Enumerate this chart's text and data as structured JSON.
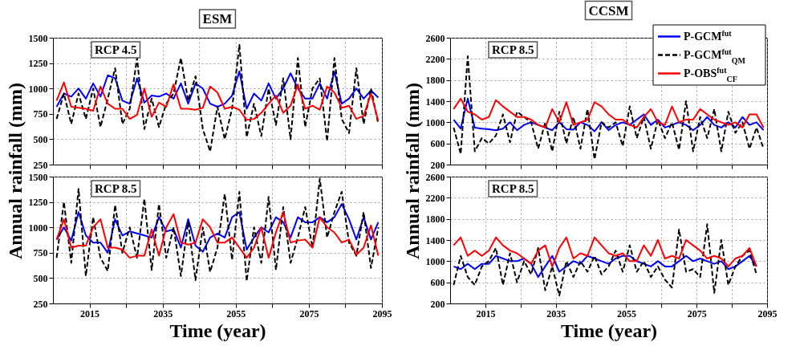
{
  "chart_data": [
    {
      "type": "line",
      "title": "ESM",
      "annotations": [
        "RCP 4.5"
      ],
      "x": [
        2006,
        2008,
        2010,
        2012,
        2014,
        2016,
        2018,
        2020,
        2022,
        2024,
        2026,
        2028,
        2030,
        2032,
        2034,
        2036,
        2038,
        2040,
        2042,
        2044,
        2046,
        2048,
        2050,
        2052,
        2054,
        2056,
        2058,
        2060,
        2062,
        2064,
        2066,
        2068,
        2070,
        2072,
        2074,
        2076,
        2078,
        2080,
        2082,
        2084,
        2086,
        2088,
        2090,
        2092,
        2094
      ],
      "xlim": [
        2005,
        2095
      ],
      "xticks": [
        2015,
        {
          "value": 2025,
          "label": null
        },
        2035,
        {
          "value": 2045,
          "label": null
        },
        2055,
        {
          "value": 2065,
          "label": null
        },
        2075,
        {
          "value": 2085,
          "label": null
        },
        2095
      ],
      "ylim": [
        250,
        1500
      ],
      "yticks": [
        250,
        500,
        750,
        1000,
        1250,
        1500
      ],
      "grid": true,
      "tick_labels": "y",
      "series": [
        {
          "color": "#0000ff",
          "values": [
            820,
            950,
            920,
            1000,
            900,
            1050,
            920,
            1130,
            1100,
            880,
            850,
            1100,
            860,
            930,
            920,
            950,
            900,
            1050,
            850,
            1050,
            1000,
            850,
            820,
            850,
            930,
            1170,
            800,
            950,
            880,
            1050,
            900,
            1000,
            1150,
            1000,
            900,
            900,
            1050,
            900,
            1165,
            850,
            900,
            1000,
            900,
            980,
            910
          ]
        },
        {
          "color": "#000000",
          "line_style": "dashed",
          "values": [
            700,
            950,
            650,
            950,
            700,
            1000,
            620,
            900,
            1200,
            650,
            800,
            1300,
            600,
            900,
            620,
            850,
            950,
            1300,
            880,
            1120,
            600,
            380,
            820,
            500,
            800,
            1430,
            520,
            850,
            530,
            1000,
            640,
            1100,
            500,
            1300,
            620,
            1000,
            1100,
            480,
            1300,
            700,
            560,
            1200,
            650,
            1000,
            650
          ]
        },
        {
          "color": "#ff0000",
          "values": [
            880,
            1060,
            820,
            810,
            800,
            780,
            1020,
            850,
            800,
            800,
            700,
            740,
            1000,
            720,
            860,
            820,
            1040,
            800,
            800,
            790,
            810,
            1020,
            960,
            800,
            820,
            790,
            690,
            700,
            760,
            850,
            930,
            760,
            830,
            1040,
            800,
            830,
            790,
            1020,
            960,
            810,
            830,
            700,
            730,
            950,
            680
          ]
        }
      ]
    },
    {
      "type": "line",
      "title": "CCSM",
      "annotations": [
        "RCP 8.5"
      ],
      "legend": "top right",
      "x": [
        2006,
        2008,
        2010,
        2012,
        2014,
        2016,
        2018,
        2020,
        2022,
        2024,
        2026,
        2028,
        2030,
        2032,
        2034,
        2036,
        2038,
        2040,
        2042,
        2044,
        2046,
        2048,
        2050,
        2052,
        2054,
        2056,
        2058,
        2060,
        2062,
        2064,
        2066,
        2068,
        2070,
        2072,
        2074,
        2076,
        2078,
        2080,
        2082,
        2084,
        2086,
        2088,
        2090,
        2092,
        2094
      ],
      "xlim": [
        2005,
        2095
      ],
      "xticks": [
        2015,
        {
          "value": 2025,
          "label": null
        },
        2035,
        {
          "value": 2045,
          "label": null
        },
        2055,
        {
          "value": 2065,
          "label": null
        },
        2075,
        {
          "value": 2085,
          "label": null
        },
        2095
      ],
      "ylim": [
        200,
        2600
      ],
      "yticks": [
        200,
        600,
        1000,
        1400,
        1800,
        2200,
        2600
      ],
      "grid": true,
      "tick_labels": "y",
      "series": [
        {
          "name": "P-GCM$^{fut}$",
          "color": "#0000ff",
          "values": [
            1050,
            880,
            1450,
            900,
            880,
            870,
            850,
            880,
            1000,
            850,
            950,
            1000,
            950,
            900,
            850,
            1000,
            870,
            860,
            1000,
            950,
            830,
            1000,
            850,
            950,
            1000,
            950,
            1050,
            1150,
            950,
            1050,
            900,
            950,
            1000,
            950,
            850,
            950,
            1100,
            950,
            900,
            1000,
            900,
            1100,
            950,
            1000,
            850
          ]
        },
        {
          "name": "P-GCM$^{fut}$$_{QM}$",
          "color": "#000000",
          "line_style": "dashed",
          "values": [
            900,
            400,
            2250,
            450,
            700,
            600,
            750,
            1150,
            620,
            1200,
            1100,
            1000,
            500,
            1000,
            450,
            1200,
            600,
            1100,
            500,
            1250,
            300,
            1000,
            900,
            1000,
            550,
            1300,
            700,
            1100,
            500,
            1050,
            700,
            1000,
            480,
            1400,
            450,
            1100,
            700,
            1250,
            450,
            1200,
            800,
            1000,
            500,
            900,
            500
          ]
        },
        {
          "name": "P-OBS$^{fut}$$_{CF}$",
          "color": "#ff0000",
          "values": [
            1250,
            1450,
            1200,
            1150,
            1050,
            1100,
            1420,
            1300,
            1200,
            1100,
            1100,
            1050,
            950,
            900,
            1250,
            1000,
            1380,
            950,
            1000,
            1050,
            1380,
            1300,
            1150,
            1050,
            1050,
            950,
            900,
            1100,
            1250,
            1000,
            950,
            1300,
            1000,
            1050,
            1050,
            1250,
            1150,
            1050,
            1000,
            950,
            1000,
            900,
            1150,
            1150,
            900
          ]
        }
      ]
    },
    {
      "type": "line",
      "annotations": [
        "RCP 8.5"
      ],
      "xlabel": "Time (year)",
      "ylabel": "Annual rainfall (mm)",
      "x": [
        2006,
        2008,
        2010,
        2012,
        2014,
        2016,
        2018,
        2020,
        2022,
        2024,
        2026,
        2028,
        2030,
        2032,
        2034,
        2036,
        2038,
        2040,
        2042,
        2044,
        2046,
        2048,
        2050,
        2052,
        2054,
        2056,
        2058,
        2060,
        2062,
        2064,
        2066,
        2068,
        2070,
        2072,
        2074,
        2076,
        2078,
        2080,
        2082,
        2084,
        2086,
        2088,
        2090,
        2092,
        2094
      ],
      "xlim": [
        2005,
        2095
      ],
      "xticks": [
        2015,
        {
          "value": 2025,
          "label": null
        },
        2035,
        {
          "value": 2045,
          "label": null
        },
        2055,
        {
          "value": 2065,
          "label": null
        },
        2075,
        {
          "value": 2085,
          "label": null
        },
        2095
      ],
      "ylim": [
        250,
        1500
      ],
      "yticks": [
        250,
        500,
        750,
        1000,
        1250,
        1500
      ],
      "grid": true,
      "series": [
        {
          "color": "#0000ff",
          "values": [
            880,
            1000,
            870,
            1150,
            920,
            850,
            850,
            750,
            1080,
            920,
            960,
            940,
            920,
            900,
            1100,
            960,
            980,
            800,
            1080,
            820,
            760,
            900,
            940,
            900,
            1100,
            1150,
            780,
            900,
            1000,
            950,
            1100,
            1050,
            900,
            1100,
            1050,
            1050,
            1100,
            1050,
            1100,
            1230,
            1080,
            880,
            1100,
            880,
            1050
          ]
        },
        {
          "color": "#000000",
          "line_style": "dashed",
          "values": [
            700,
            1250,
            650,
            1380,
            520,
            1100,
            700,
            570,
            1220,
            750,
            1000,
            700,
            1280,
            580,
            1230,
            700,
            1000,
            520,
            1050,
            480,
            1000,
            560,
            800,
            1330,
            680,
            1350,
            470,
            1000,
            650,
            1300,
            580,
            1200,
            650,
            900,
            1200,
            800,
            1480,
            900,
            1150,
            1350,
            850,
            720,
            1150,
            600,
            1000
          ]
        },
        {
          "color": "#ff0000",
          "values": [
            880,
            1080,
            800,
            820,
            820,
            1000,
            1080,
            800,
            800,
            780,
            700,
            720,
            720,
            980,
            720,
            1000,
            1130,
            850,
            830,
            850,
            1080,
            1000,
            850,
            850,
            900,
            800,
            700,
            800,
            1000,
            700,
            950,
            1150,
            850,
            870,
            880,
            800,
            1100,
            1000,
            950,
            850,
            880,
            730,
            800,
            1020,
            720
          ]
        }
      ]
    },
    {
      "type": "line",
      "annotations": [
        "RCP 8.5"
      ],
      "xlabel": "Time (year)",
      "ylabel": "Annual rainfall (mm)",
      "x": [
        2006,
        2008,
        2010,
        2012,
        2014,
        2016,
        2018,
        2020,
        2022,
        2024,
        2026,
        2028,
        2030,
        2032,
        2034,
        2036,
        2038,
        2040,
        2042,
        2044,
        2046,
        2048,
        2050,
        2052,
        2054,
        2056,
        2058,
        2060,
        2062,
        2064,
        2066,
        2068,
        2070,
        2072,
        2074,
        2076,
        2078,
        2080,
        2082,
        2084,
        2086,
        2088,
        2090,
        2092
      ],
      "xlim": [
        2005,
        2095
      ],
      "xticks": [
        2015,
        {
          "value": 2025,
          "label": null
        },
        2035,
        {
          "value": 2045,
          "label": null
        },
        2055,
        {
          "value": 2065,
          "label": null
        },
        2075,
        {
          "value": 2085,
          "label": null
        },
        2095
      ],
      "ylim": [
        200,
        2600
      ],
      "yticks": [
        200,
        600,
        1000,
        1400,
        1800,
        2200,
        2600
      ],
      "grid": true,
      "series": [
        {
          "color": "#0000ff",
          "values": [
            900,
            850,
            950,
            850,
            950,
            950,
            1100,
            1050,
            1000,
            1000,
            1050,
            950,
            700,
            900,
            1100,
            800,
            900,
            1000,
            950,
            1100,
            1050,
            1000,
            950,
            1050,
            1100,
            1100,
            1000,
            950,
            900,
            1000,
            900,
            900,
            1000,
            1100,
            1000,
            1050,
            1000,
            950,
            1000,
            850,
            900,
            1000,
            1100,
            900
          ]
        },
        {
          "color": "#000000",
          "line_style": "dashed",
          "values": [
            550,
            1100,
            700,
            550,
            900,
            1000,
            1250,
            550,
            1150,
            600,
            1000,
            750,
            1250,
            450,
            900,
            350,
            1000,
            700,
            1000,
            800,
            1100,
            750,
            900,
            1200,
            800,
            1300,
            800,
            1000,
            700,
            900,
            650,
            500,
            1600,
            800,
            850,
            700,
            1700,
            400,
            1400,
            550,
            900,
            1100,
            1200,
            750
          ]
        },
        {
          "color": "#ff0000",
          "values": [
            1300,
            1450,
            1100,
            1200,
            1100,
            1200,
            1450,
            1300,
            1200,
            1150,
            1050,
            950,
            1200,
            1300,
            900,
            1250,
            1450,
            1050,
            1150,
            1100,
            1450,
            1300,
            1150,
            1100,
            1150,
            1000,
            1000,
            1300,
            1100,
            1400,
            1050,
            1100,
            1050,
            1400,
            1300,
            1200,
            1050,
            1100,
            1050,
            900,
            1050,
            1100,
            1250,
            900
          ]
        }
      ]
    }
  ]
}
